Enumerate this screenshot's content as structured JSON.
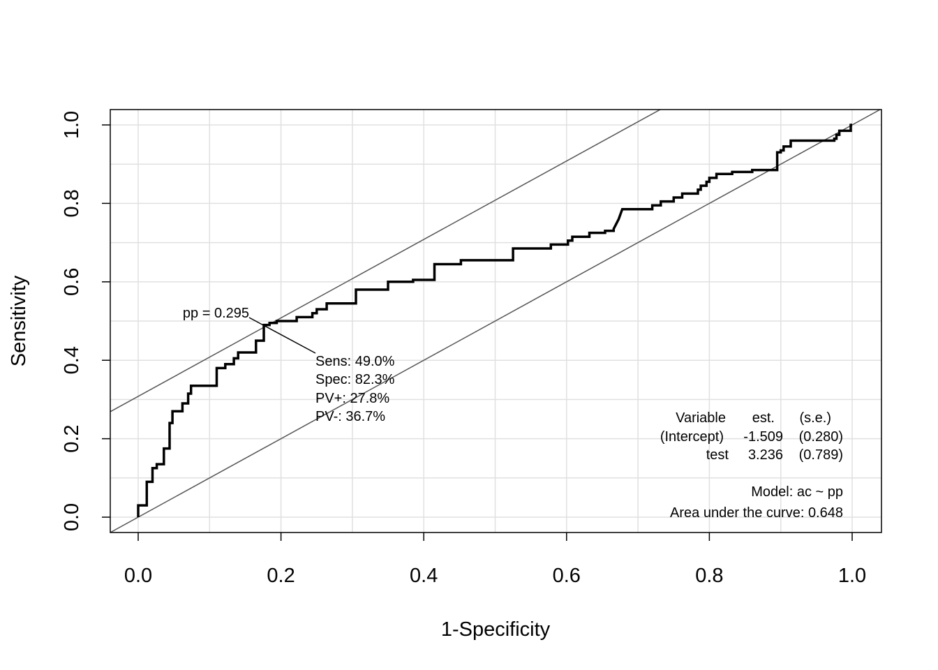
{
  "chart_data": {
    "type": "line",
    "title": "",
    "xlabel": "1-Specificity",
    "ylabel": "Sensitivity",
    "xlim": [
      -0.04,
      1.04
    ],
    "ylim": [
      -0.04,
      1.04
    ],
    "grid": true,
    "x_ticks": [
      0.0,
      0.2,
      0.4,
      0.6,
      0.8,
      1.0
    ],
    "y_ticks": [
      0.0,
      0.2,
      0.4,
      0.6,
      0.8,
      1.0
    ],
    "x_tick_labels": [
      "0.0",
      "0.2",
      "0.4",
      "0.6",
      "0.8",
      "1.0"
    ],
    "y_tick_labels": [
      "0.0",
      "0.2",
      "0.4",
      "0.6",
      "0.8",
      "1.0"
    ],
    "series": [
      {
        "style": "step",
        "color": "#000000",
        "x": [
          0.0,
          0.0,
          0.012,
          0.012,
          0.02,
          0.02,
          0.026,
          0.026,
          0.036,
          0.036,
          0.044,
          0.044,
          0.048,
          0.048,
          0.062,
          0.062,
          0.07,
          0.07,
          0.074,
          0.074,
          0.11,
          0.11,
          0.122,
          0.122,
          0.134,
          0.134,
          0.14,
          0.14,
          0.165,
          0.165,
          0.176,
          0.176,
          0.184,
          0.184,
          0.194,
          0.194,
          0.222,
          0.222,
          0.244,
          0.244,
          0.25,
          0.25,
          0.264,
          0.264,
          0.305,
          0.305,
          0.35,
          0.35,
          0.385,
          0.385,
          0.415,
          0.415,
          0.452,
          0.452,
          0.525,
          0.525,
          0.578,
          0.578,
          0.602,
          0.602,
          0.608,
          0.608,
          0.632,
          0.632,
          0.654,
          0.654,
          0.666,
          0.666,
          0.673,
          0.678,
          0.72,
          0.72,
          0.732,
          0.732,
          0.75,
          0.75,
          0.762,
          0.762,
          0.784,
          0.784,
          0.788,
          0.788,
          0.796,
          0.796,
          0.8,
          0.8,
          0.81,
          0.81,
          0.832,
          0.832,
          0.86,
          0.86,
          0.895,
          0.895,
          0.9,
          0.9,
          0.904,
          0.904,
          0.914,
          0.914,
          0.975,
          0.975,
          0.978,
          0.978,
          0.982,
          0.982,
          0.998,
          0.998,
          1.0
        ],
        "y": [
          0.0,
          0.03,
          0.03,
          0.09,
          0.09,
          0.125,
          0.125,
          0.135,
          0.135,
          0.175,
          0.175,
          0.24,
          0.24,
          0.27,
          0.27,
          0.29,
          0.29,
          0.315,
          0.315,
          0.335,
          0.335,
          0.38,
          0.38,
          0.39,
          0.39,
          0.405,
          0.405,
          0.42,
          0.42,
          0.45,
          0.45,
          0.49,
          0.49,
          0.495,
          0.495,
          0.5,
          0.5,
          0.51,
          0.51,
          0.52,
          0.52,
          0.53,
          0.53,
          0.545,
          0.545,
          0.58,
          0.58,
          0.6,
          0.6,
          0.605,
          0.605,
          0.645,
          0.645,
          0.655,
          0.655,
          0.685,
          0.685,
          0.695,
          0.695,
          0.705,
          0.705,
          0.715,
          0.715,
          0.725,
          0.725,
          0.73,
          0.73,
          0.735,
          0.76,
          0.785,
          0.785,
          0.795,
          0.795,
          0.805,
          0.805,
          0.815,
          0.815,
          0.825,
          0.825,
          0.835,
          0.835,
          0.845,
          0.845,
          0.855,
          0.855,
          0.865,
          0.865,
          0.875,
          0.875,
          0.88,
          0.88,
          0.885,
          0.885,
          0.93,
          0.93,
          0.935,
          0.935,
          0.945,
          0.945,
          0.96,
          0.96,
          0.965,
          0.965,
          0.975,
          0.975,
          0.985,
          0.985,
          1.0,
          1.0
        ]
      }
    ],
    "reference_lines": [
      {
        "intercept": 0.0,
        "slope": 1,
        "color": "#555555"
      },
      {
        "intercept": 0.308,
        "slope": 1,
        "color": "#555555"
      }
    ],
    "optimal_point": {
      "x": 0.177,
      "y": 0.49
    },
    "annotations": {
      "cutoff_label": "pp = 0.295",
      "stats": [
        "Sens: 49.0%",
        "Spec: 82.3%",
        "PV+: 27.8%",
        "PV-: 36.7%"
      ]
    },
    "model_table": {
      "headers": [
        "Variable",
        "est.",
        "(s.e.)"
      ],
      "rows": [
        [
          "(Intercept)",
          "-1.509",
          "(0.280)"
        ],
        [
          "test",
          "3.236",
          "(0.789)"
        ]
      ],
      "model": "Model:  ac ~ pp",
      "auc": "Area under the curve: 0.648"
    }
  }
}
